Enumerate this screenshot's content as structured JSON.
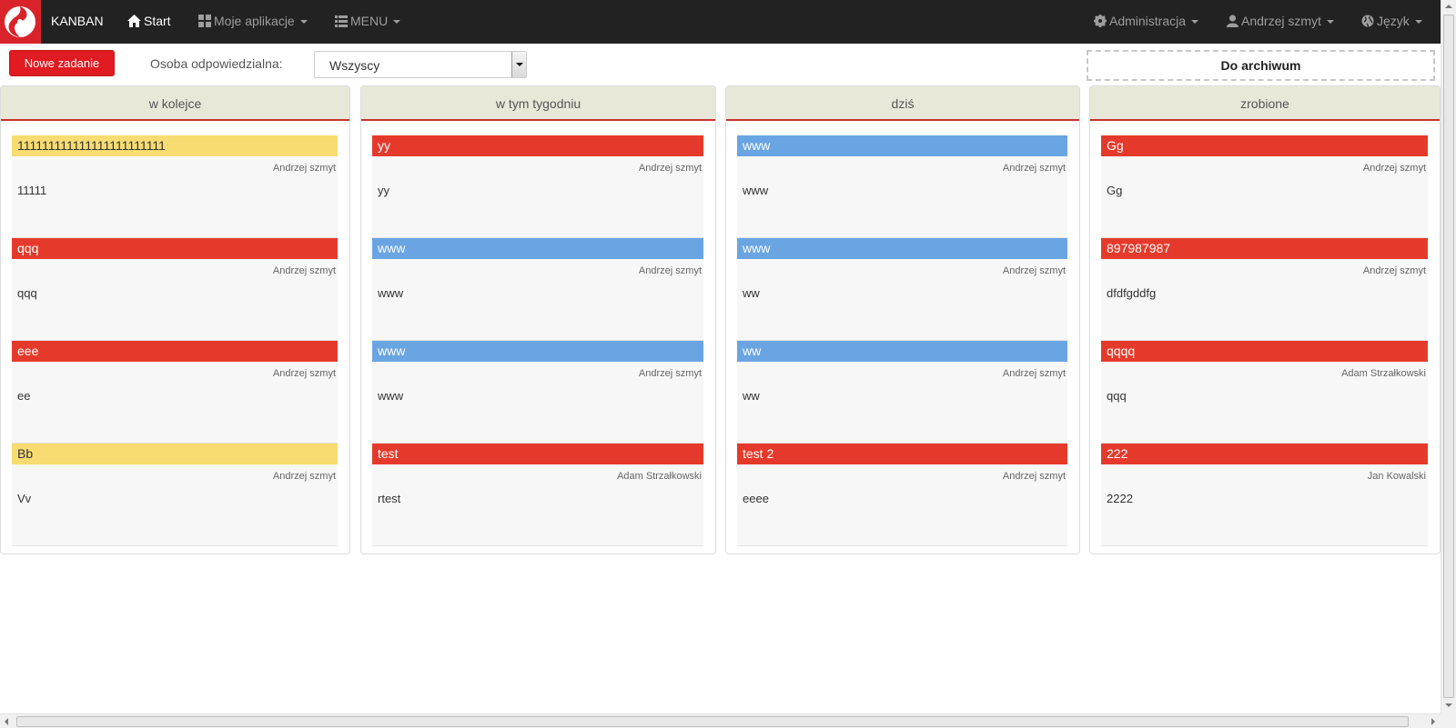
{
  "navbar": {
    "brand": "KANBAN",
    "items": [
      {
        "label": "Start",
        "icon": "home-icon",
        "active": true
      },
      {
        "label": "Moje aplikacje",
        "icon": "grid-icon",
        "dropdown": true
      },
      {
        "label": "MENU",
        "icon": "list-icon",
        "dropdown": true
      }
    ],
    "right_items": [
      {
        "label": "Administracja",
        "icon": "gear-icon",
        "dropdown": true
      },
      {
        "label": "Andrzej szmyt",
        "icon": "user-icon",
        "dropdown": true
      },
      {
        "label": "Język",
        "icon": "globe-icon",
        "dropdown": true
      }
    ]
  },
  "toolbar": {
    "new_task_label": "Nowe zadanie",
    "responsible_label": "Osoba odpowiedzialna:",
    "responsible_selected": "Wszyscy",
    "archive_label": "Do archiwum"
  },
  "colors": {
    "red": "#e53a2b",
    "blue": "#6aa5e3",
    "yellow": "#f8dc72",
    "navbar": "#222222",
    "header": "#e8e8d9"
  },
  "columns": [
    {
      "title": "w kolejce",
      "cards": [
        {
          "title": "111111111111111111111111",
          "color": "yellow",
          "owner": "Andrzej szmyt",
          "description": "11111"
        },
        {
          "title": "qqq",
          "color": "red",
          "owner": "Andrzej szmyt",
          "description": "qqq"
        },
        {
          "title": "eee",
          "color": "red",
          "owner": "Andrzej szmyt",
          "description": "ee"
        },
        {
          "title": "Bb",
          "color": "yellow",
          "owner": "Andrzej szmyt",
          "description": "Vv"
        }
      ]
    },
    {
      "title": "w tym tygodniu",
      "cards": [
        {
          "title": "yy",
          "color": "red",
          "owner": "Andrzej szmyt",
          "description": "yy"
        },
        {
          "title": "www",
          "color": "blue",
          "owner": "Andrzej szmyt",
          "description": "www"
        },
        {
          "title": "www",
          "color": "blue",
          "owner": "Andrzej szmyt",
          "description": "www"
        },
        {
          "title": "test",
          "color": "red",
          "owner": "Adam Strzałkowski",
          "description": "rtest"
        }
      ]
    },
    {
      "title": "dziś",
      "cards": [
        {
          "title": "www",
          "color": "blue",
          "owner": "Andrzej szmyt",
          "description": "www"
        },
        {
          "title": "www",
          "color": "blue",
          "owner": "Andrzej szmyt",
          "description": "ww"
        },
        {
          "title": "ww",
          "color": "blue",
          "owner": "Andrzej szmyt",
          "description": "ww"
        },
        {
          "title": "test 2",
          "color": "red",
          "owner": "Andrzej szmyt",
          "description": "eeee"
        }
      ]
    },
    {
      "title": "zrobione",
      "cards": [
        {
          "title": "Gg",
          "color": "red",
          "owner": "Andrzej szmyt",
          "description": "Gg"
        },
        {
          "title": "897987987",
          "color": "red",
          "owner": "Andrzej szmyt",
          "description": "dfdfgddfg"
        },
        {
          "title": "qqqq",
          "color": "red",
          "owner": "Adam Strzałkowski",
          "description": "qqq"
        },
        {
          "title": "222",
          "color": "red",
          "owner": "Jan Kowalski",
          "description": "2222"
        }
      ]
    }
  ]
}
